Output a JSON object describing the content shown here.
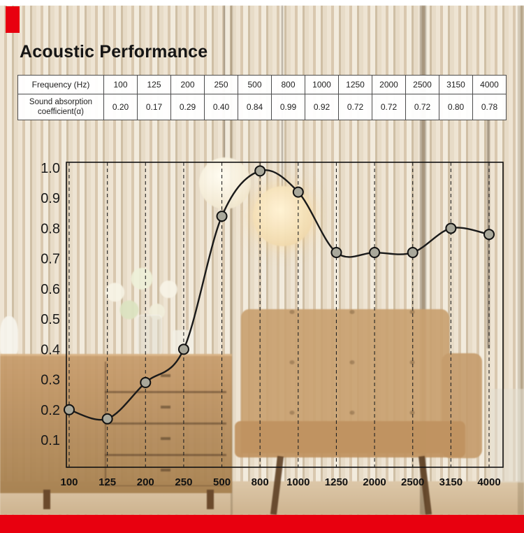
{
  "header": {
    "title": "Acoustic Performance"
  },
  "table": {
    "row1_header": "Frequency (Hz)",
    "row2_header": "Sound absorption coefficient(α)",
    "frequencies": [
      "100",
      "125",
      "200",
      "250",
      "500",
      "800",
      "1000",
      "1250",
      "2000",
      "2500",
      "3150",
      "4000"
    ],
    "coefficients": [
      "0.20",
      "0.17",
      "0.29",
      "0.40",
      "0.84",
      "0.99",
      "0.92",
      "0.72",
      "0.72",
      "0.72",
      "0.80",
      "0.78"
    ]
  },
  "chart_data": {
    "type": "line",
    "categories": [
      "100",
      "125",
      "200",
      "250",
      "500",
      "800",
      "1000",
      "1250",
      "2000",
      "2500",
      "3150",
      "4000"
    ],
    "values": [
      0.2,
      0.17,
      0.29,
      0.4,
      0.84,
      0.99,
      0.92,
      0.72,
      0.72,
      0.72,
      0.8,
      0.78
    ],
    "title": "",
    "xlabel": "Frequency (Hz)",
    "ylabel": "Sound absorption coefficient (α)",
    "ylim": [
      0,
      1.02
    ],
    "yticks": [
      0.1,
      0.2,
      0.3,
      0.4,
      0.5,
      0.6,
      0.7,
      0.8,
      0.9,
      1.0
    ],
    "grid": "vertical-dashed",
    "marker": "circle",
    "line_color": "#1a1a1a",
    "marker_fill": "#a9a89b",
    "legend_position": "none"
  },
  "decor": {
    "accent_red": "#e8000f"
  }
}
